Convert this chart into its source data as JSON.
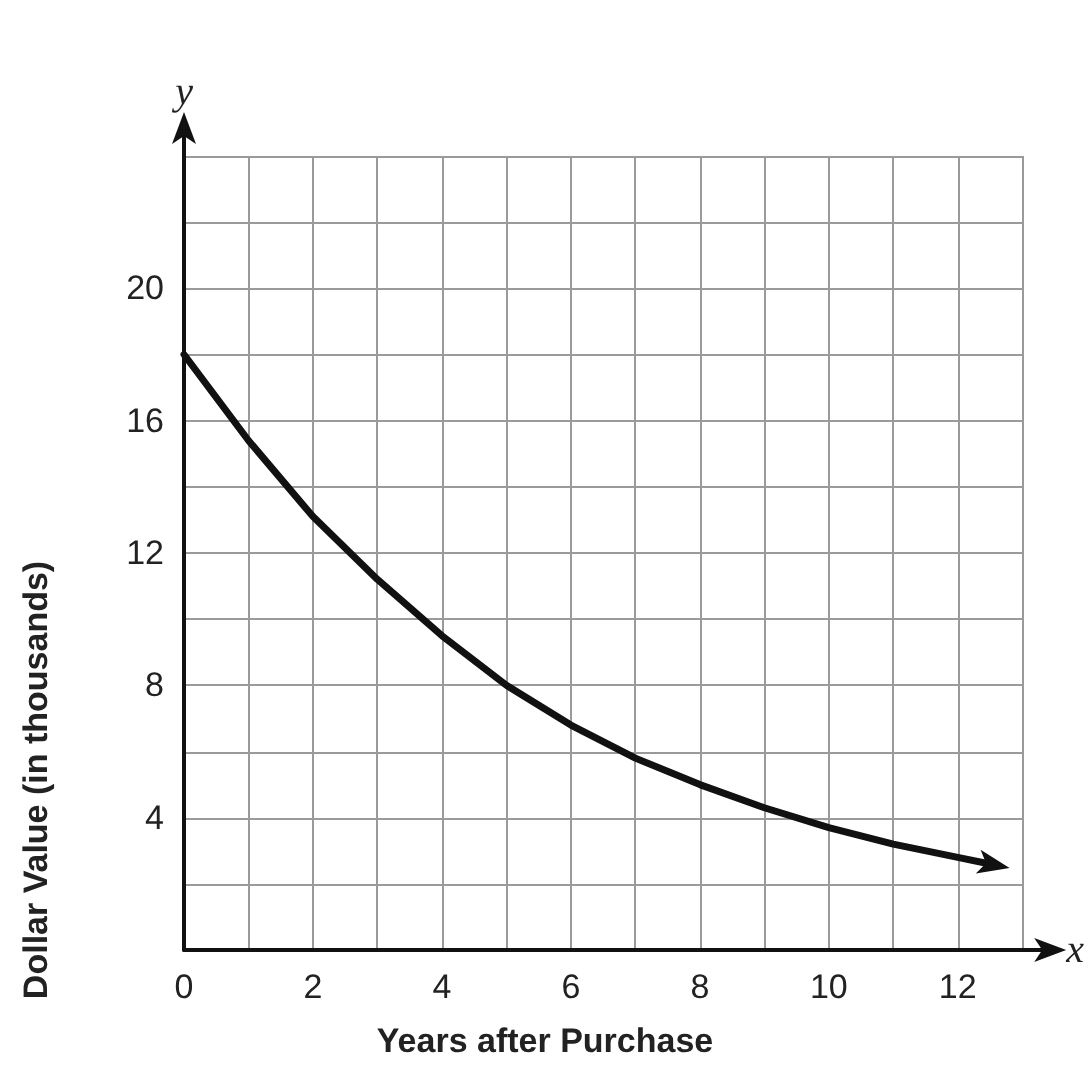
{
  "chart_data": {
    "type": "line",
    "xlabel": "Years after Purchase",
    "ylabel": "Dollar Value (in thousands)",
    "annotations": [
      "x",
      "y"
    ],
    "x": [
      0,
      1,
      2,
      3,
      4,
      5,
      6,
      7,
      8,
      9,
      10,
      11,
      12,
      12.5
    ],
    "series": [
      {
        "color": "#111111",
        "values": [
          18,
          15.4,
          13.1,
          11.2,
          9.5,
          8.0,
          6.8,
          5.8,
          5.0,
          4.3,
          3.7,
          3.2,
          2.8,
          2.6
        ]
      }
    ],
    "xlim": [
      0,
      13
    ],
    "ylim": [
      0,
      24
    ],
    "xticks": [
      0,
      {
        "value": 1,
        "label": null
      },
      2,
      {
        "value": 3,
        "label": null
      },
      4,
      {
        "value": 5,
        "label": null
      },
      6,
      {
        "value": 7,
        "label": null
      },
      8,
      {
        "value": 9,
        "label": null
      },
      10,
      {
        "value": 11,
        "label": null
      },
      12,
      {
        "value": 13,
        "label": null
      }
    ],
    "yticks": [
      {
        "value": 0,
        "label": null
      },
      {
        "value": 2,
        "label": null
      },
      4,
      {
        "value": 6,
        "label": null
      },
      8,
      {
        "value": 10,
        "label": null
      },
      12,
      {
        "value": 14,
        "label": null
      },
      16,
      {
        "value": 18,
        "label": null
      },
      20,
      {
        "value": 22,
        "label": null
      },
      {
        "value": 24,
        "label": null
      }
    ],
    "grid": true,
    "marker": "none",
    "line_style": "solid"
  }
}
